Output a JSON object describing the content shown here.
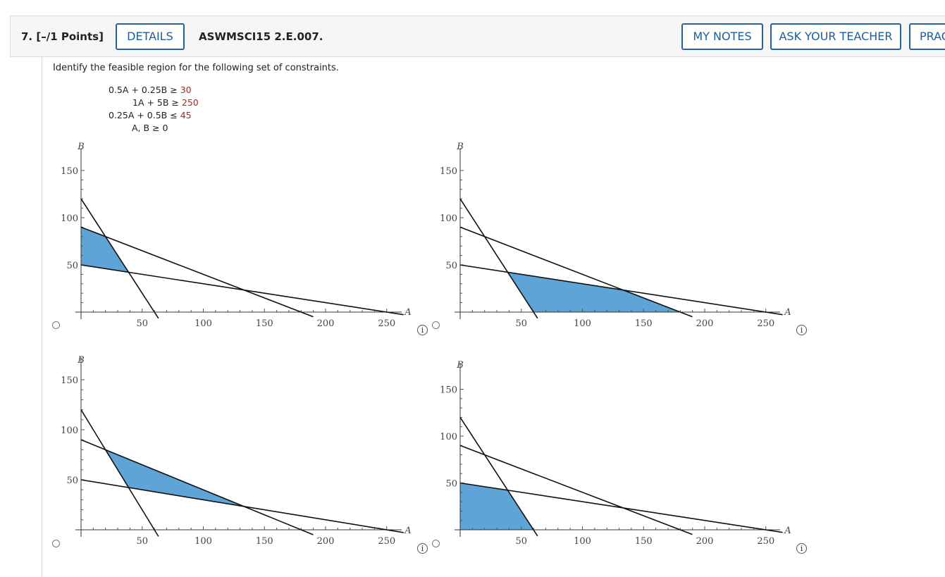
{
  "question": {
    "number": "7.",
    "points": "[–/1 Points]",
    "details_label": "DETAILS",
    "code": "ASWMSCI15 2.E.007.",
    "my_notes_label": "MY NOTES",
    "ask_teacher_label": "ASK YOUR TEACHER",
    "practice_label": "PRAC"
  },
  "prompt": "Identify the feasible region for the following set of constraints.",
  "constraints": [
    {
      "lhs": "0.5A + 0.25B ≥",
      "rhs": "30"
    },
    {
      "lhs": "1A + 5B ≥",
      "rhs": "250"
    },
    {
      "lhs": "0.25A + 0.5B ≤",
      "rhs": "45"
    },
    {
      "lhs": "A, B ≥ 0",
      "rhs": ""
    }
  ],
  "colors": {
    "accent": "#1c5d9a",
    "fill": "#5fa4d6",
    "constraint_value": "#c41a1a"
  },
  "info_icon_glyph": "i",
  "chart_data": [
    {
      "type": "area",
      "xlabel": "A",
      "ylabel": "B",
      "xlim": [
        0,
        255
      ],
      "ylim": [
        0,
        150
      ],
      "xticks": [
        50,
        100,
        150,
        200,
        250
      ],
      "yticks": [
        50,
        100,
        150
      ],
      "tick_labels_x": [
        "50",
        "100",
        "150",
        "200",
        "250"
      ],
      "tick_labels_y": [
        "50",
        "100",
        "150"
      ],
      "lines": [
        {
          "points": [
            [
              0,
              120
            ],
            [
              60,
              0
            ]
          ]
        },
        {
          "points": [
            [
              0,
              90
            ],
            [
              180,
              0
            ]
          ]
        },
        {
          "points": [
            [
              0,
              50
            ],
            [
              250,
              0
            ]
          ]
        }
      ],
      "region": [
        [
          0,
          50
        ],
        [
          0,
          90
        ],
        [
          20,
          80
        ],
        [
          38.9,
          42.2
        ]
      ]
    },
    {
      "type": "area",
      "xlabel": "A",
      "ylabel": "B",
      "xlim": [
        0,
        255
      ],
      "ylim": [
        0,
        150
      ],
      "xticks": [
        50,
        100,
        150,
        200,
        250
      ],
      "yticks": [
        50,
        100,
        150
      ],
      "tick_labels_x": [
        "50",
        "100",
        "150",
        "200",
        "250"
      ],
      "tick_labels_y": [
        "50",
        "100",
        "150"
      ],
      "lines": [
        {
          "points": [
            [
              0,
              120
            ],
            [
              60,
              0
            ]
          ]
        },
        {
          "points": [
            [
              0,
              90
            ],
            [
              180,
              0
            ]
          ]
        },
        {
          "points": [
            [
              0,
              50
            ],
            [
              250,
              0
            ]
          ]
        }
      ],
      "region": [
        [
          38.9,
          42.2
        ],
        [
          133.3,
          23.3
        ],
        [
          180,
          0
        ],
        [
          60,
          0
        ]
      ]
    },
    {
      "type": "area",
      "xlabel": "A",
      "ylabel": "B",
      "xlim": [
        0,
        255
      ],
      "ylim": [
        0,
        150
      ],
      "xticks": [
        50,
        100,
        150,
        200,
        250
      ],
      "yticks": [
        50,
        100,
        150
      ],
      "tick_labels_x": [
        "50",
        "100",
        "150",
        "200",
        "250"
      ],
      "tick_labels_y": [
        "50",
        "100",
        "150"
      ],
      "lines": [
        {
          "points": [
            [
              0,
              120
            ],
            [
              60,
              0
            ]
          ]
        },
        {
          "points": [
            [
              0,
              90
            ],
            [
              180,
              0
            ]
          ]
        },
        {
          "points": [
            [
              0,
              50
            ],
            [
              250,
              0
            ]
          ]
        }
      ],
      "region": [
        [
          20,
          80
        ],
        [
          133.3,
          23.3
        ],
        [
          38.9,
          42.2
        ]
      ]
    },
    {
      "type": "area",
      "xlabel": "A",
      "ylabel": "B",
      "xlim": [
        0,
        255
      ],
      "ylim": [
        0,
        150
      ],
      "xticks": [
        50,
        100,
        150,
        200,
        250
      ],
      "yticks": [
        50,
        100,
        150
      ],
      "tick_labels_x": [
        "50",
        "100",
        "150",
        "200",
        "250"
      ],
      "tick_labels_y": [
        "50",
        "100",
        "150"
      ],
      "lines": [
        {
          "points": [
            [
              0,
              120
            ],
            [
              60,
              0
            ]
          ]
        },
        {
          "points": [
            [
              0,
              90
            ],
            [
              180,
              0
            ]
          ]
        },
        {
          "points": [
            [
              0,
              50
            ],
            [
              250,
              0
            ]
          ]
        }
      ],
      "region": [
        [
          0,
          0
        ],
        [
          0,
          50
        ],
        [
          38.9,
          42.2
        ],
        [
          60,
          0
        ]
      ]
    }
  ]
}
